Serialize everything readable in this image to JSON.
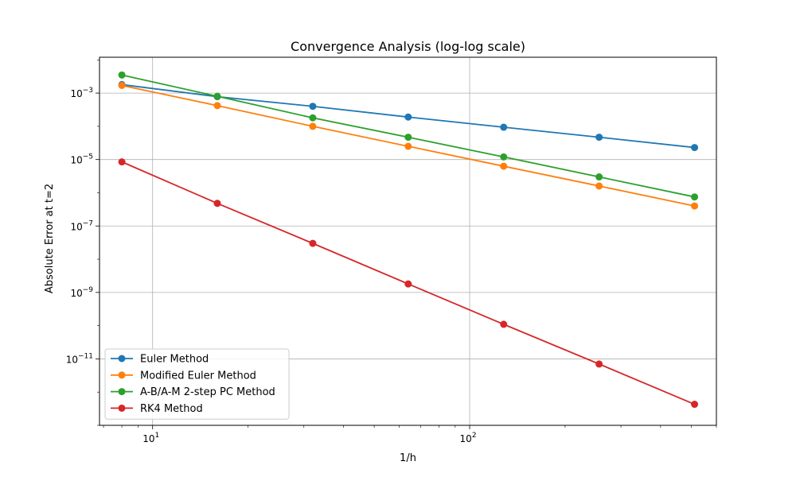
{
  "chart_data": {
    "type": "line",
    "title": "Convergence Analysis (log-log scale)",
    "xlabel": "1/h",
    "ylabel": "Absolute Error at t=2",
    "xscale": "log",
    "yscale": "log",
    "xlim": [
      6.8,
      600
    ],
    "ylim": [
      1e-13,
      0.012
    ],
    "x": [
      8,
      16,
      32,
      64,
      128,
      256,
      512
    ],
    "x_ticks": [
      {
        "value": 10,
        "base": "10",
        "exp": "1"
      },
      {
        "value": 100,
        "base": "10",
        "exp": "2"
      }
    ],
    "y_ticks": [
      {
        "value": 0.001,
        "base": "10",
        "exp": "−3"
      },
      {
        "value": 1e-05,
        "base": "10",
        "exp": "−5"
      },
      {
        "value": 1e-07,
        "base": "10",
        "exp": "−7"
      },
      {
        "value": 1e-09,
        "base": "10",
        "exp": "−9"
      },
      {
        "value": 1e-11,
        "base": "10",
        "exp": "−11"
      }
    ],
    "grid": true,
    "legend_position": "lower-left",
    "series": [
      {
        "name": "Euler Method",
        "color": "#1f77b4",
        "values": [
          0.0018,
          0.00078,
          0.0004,
          0.00019,
          9.4e-05,
          4.7e-05,
          2.3e-05
        ]
      },
      {
        "name": "Modified Euler Method",
        "color": "#ff7f0e",
        "values": [
          0.0017,
          0.00042,
          0.0001,
          2.5e-05,
          6.3e-06,
          1.6e-06,
          4e-07
        ]
      },
      {
        "name": "A-B/A-M 2-step PC Method",
        "color": "#2ca02c",
        "values": [
          0.0035,
          0.0008,
          0.00018,
          4.7e-05,
          1.2e-05,
          3e-06,
          7.5e-07
        ]
      },
      {
        "name": "RK4 Method",
        "color": "#d62728",
        "values": [
          8.5e-06,
          4.8e-07,
          3e-08,
          1.8e-09,
          1.1e-10,
          7e-12,
          4.3e-13
        ]
      }
    ]
  }
}
